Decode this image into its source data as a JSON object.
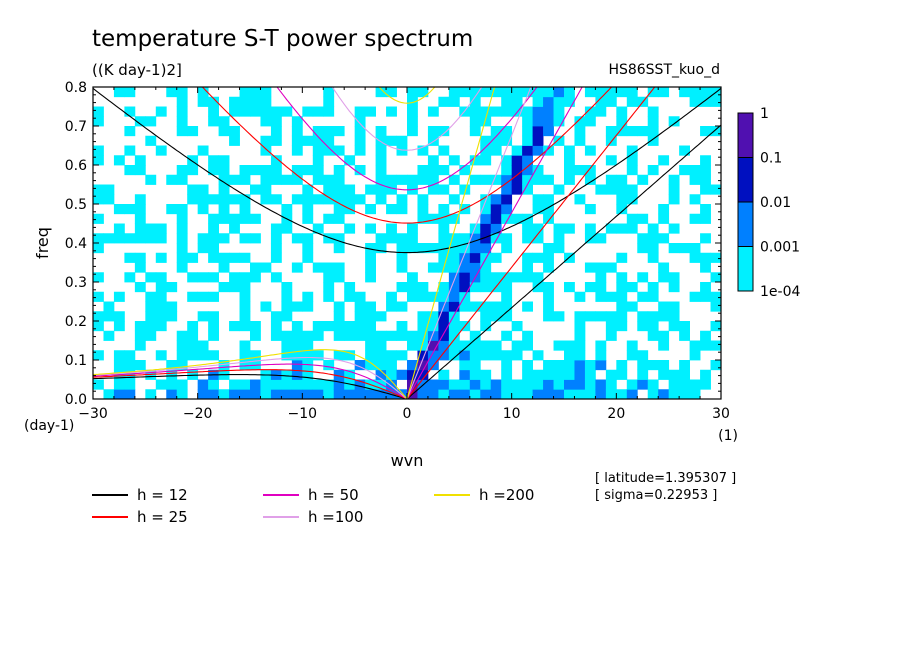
{
  "chart_data": {
    "type": "heatmap",
    "title": "temperature S-T power spectrum",
    "units": "((K day-1)2]",
    "run_name": "HS86SST_kuo_d",
    "xlabel": "wvn",
    "ylabel": "freq",
    "x_unit": "(1)",
    "y_unit": "(day-1)",
    "xlim": [
      -30,
      30
    ],
    "ylim": [
      0,
      0.8
    ],
    "x_ticks": [
      -30,
      -20,
      -10,
      0,
      10,
      20,
      30
    ],
    "y_ticks": [
      0.0,
      0.1,
      0.2,
      0.3,
      0.4,
      0.5,
      0.6,
      0.7,
      0.8
    ],
    "x_tick_labels": [
      "−30",
      "−20",
      "−10",
      "0",
      "10",
      "20",
      "30"
    ],
    "y_tick_labels": [
      "0.0",
      "0.1",
      "0.2",
      "0.3",
      "0.4",
      "0.5",
      "0.6",
      "0.7",
      "0.8"
    ],
    "colorbar": {
      "scale": "log",
      "levels": [
        0.0001,
        0.001,
        0.01,
        0.1,
        1
      ],
      "labels": [
        "1e-04",
        "0.001",
        "0.01",
        "0.1",
        "1"
      ],
      "colors": [
        "#00f0ff",
        "#0080ff",
        "#0010c0",
        "#5010b0"
      ]
    },
    "annotations": [
      "[ latitude=1.395307 ]",
      "[ sigma=0.22953 ]"
    ],
    "dispersion_curves": [
      {
        "name": "h = 12",
        "color": "#000000"
      },
      {
        "name": "h = 25",
        "color": "#ff0000"
      },
      {
        "name": "h = 50",
        "color": "#e000c0"
      },
      {
        "name": "h =100",
        "color": "#e0a0e8"
      },
      {
        "name": "h =200",
        "color": "#f0e000"
      }
    ],
    "legend_placement": "bottom-left",
    "grid": false
  }
}
